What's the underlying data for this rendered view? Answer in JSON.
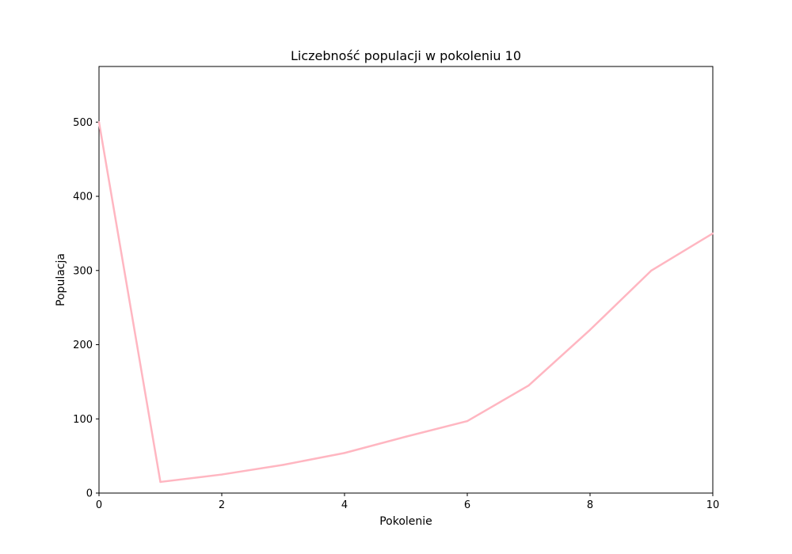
{
  "chart_data": {
    "type": "line",
    "title": "Liczebność populacji w pokoleniu 10",
    "xlabel": "Pokolenie",
    "ylabel": "Populacja",
    "xlim": [
      0,
      10
    ],
    "ylim": [
      0,
      575
    ],
    "x_ticks": [
      0,
      2,
      4,
      6,
      8,
      10
    ],
    "y_ticks": [
      0,
      100,
      200,
      300,
      400,
      500
    ],
    "grid": false,
    "legend": "none",
    "series": [
      {
        "color": "#ffb6c1",
        "x": [
          0,
          1,
          2,
          3,
          4,
          5,
          6,
          7,
          8,
          9,
          10
        ],
        "y": [
          500,
          15,
          25,
          38,
          54,
          76,
          97,
          145,
          220,
          300,
          350
        ]
      }
    ]
  }
}
